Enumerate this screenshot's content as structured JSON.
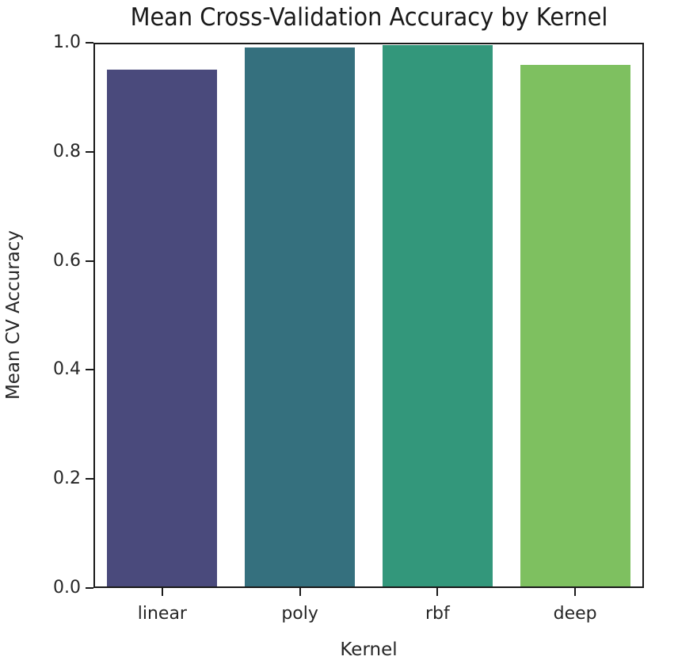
{
  "chart_data": {
    "type": "bar",
    "title": "Mean Cross-Validation Accuracy by Kernel",
    "xlabel": "Kernel",
    "ylabel": "Mean CV Accuracy",
    "categories": [
      "linear",
      "poly",
      "rbf",
      "deep"
    ],
    "values": [
      0.95,
      0.991,
      0.995,
      0.959
    ],
    "colors": [
      "#4a4a7c",
      "#35707e",
      "#33977b",
      "#7ec060"
    ],
    "ylim": [
      0.0,
      1.0
    ],
    "yticks": [
      0.0,
      0.2,
      0.4,
      0.6,
      0.8,
      1.0
    ],
    "ytick_labels": [
      "0.0",
      "0.2",
      "0.4",
      "0.6",
      "0.8",
      "1.0"
    ],
    "grid": false,
    "legend": null
  }
}
